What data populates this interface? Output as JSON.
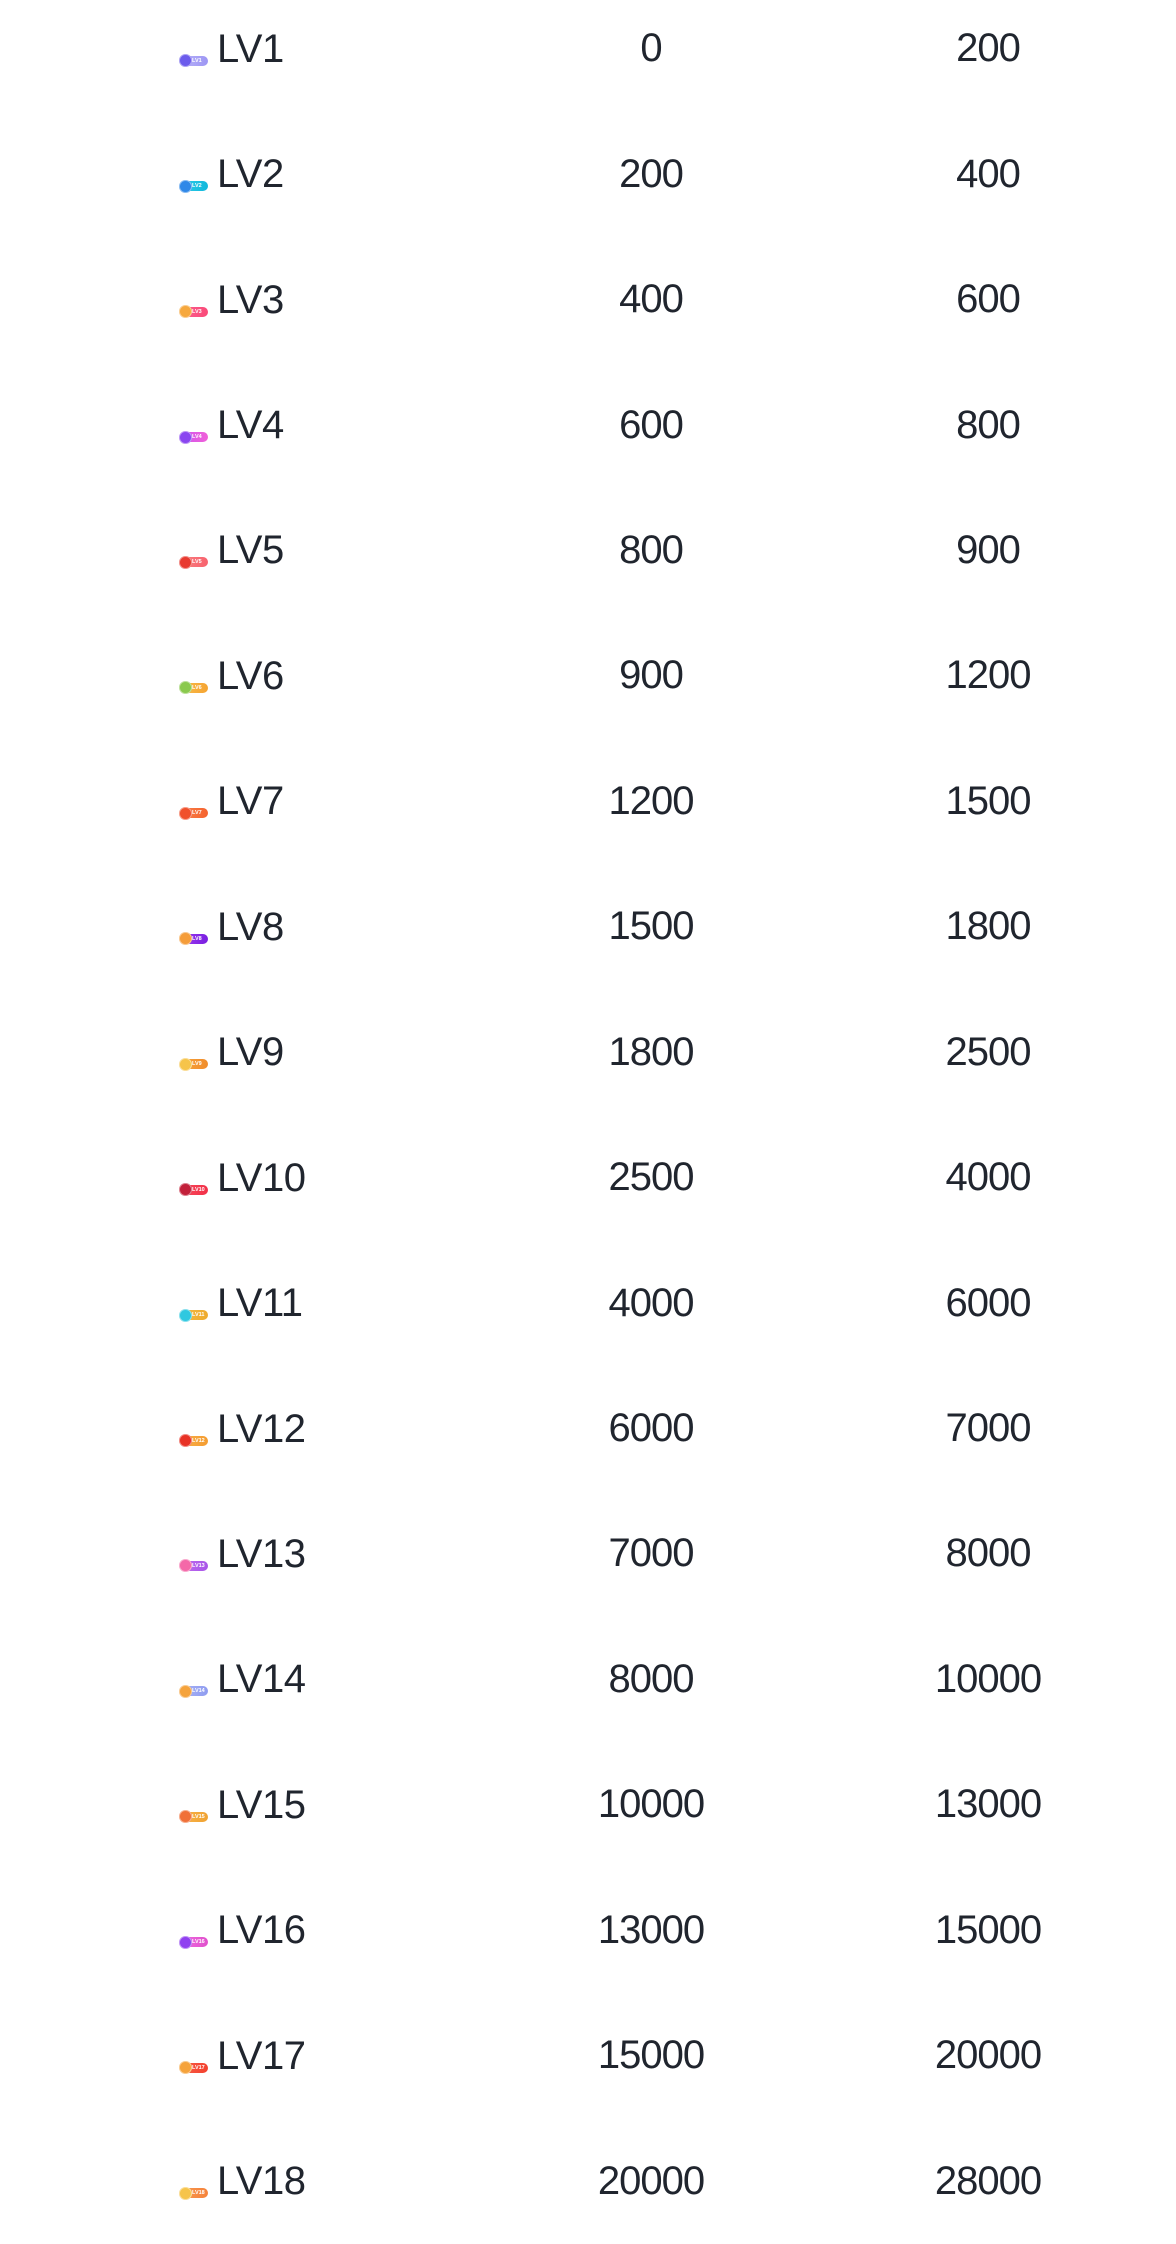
{
  "page": {
    "background_color": "#ffffff",
    "text_color": "#20252e"
  },
  "rows": [
    {
      "level": "LV1",
      "min": "0",
      "max": "200",
      "badge": {
        "dot": "#6c5cec",
        "from": "#b9b4f8",
        "to": "#9d96f4"
      }
    },
    {
      "level": "LV2",
      "min": "200",
      "max": "400",
      "badge": {
        "dot": "#2f88e8",
        "from": "#2ecde8",
        "to": "#12b8dc"
      }
    },
    {
      "level": "LV3",
      "min": "400",
      "max": "600",
      "badge": {
        "dot": "#f6a83e",
        "from": "#fb5f90",
        "to": "#fa4a78"
      }
    },
    {
      "level": "LV4",
      "min": "600",
      "max": "800",
      "badge": {
        "dot": "#8a46f0",
        "from": "#cf55f0",
        "to": "#f060d8"
      }
    },
    {
      "level": "LV5",
      "min": "800",
      "max": "900",
      "badge": {
        "dot": "#e83a30",
        "from": "#fa8080",
        "to": "#f7626e"
      }
    },
    {
      "level": "LV6",
      "min": "900",
      "max": "1200",
      "badge": {
        "dot": "#8ac94e",
        "from": "#f8bb4a",
        "to": "#f5a432"
      }
    },
    {
      "level": "LV7",
      "min": "1200",
      "max": "1500",
      "badge": {
        "dot": "#f0512c",
        "from": "#f8824a",
        "to": "#f5622e"
      }
    },
    {
      "level": "LV8",
      "min": "1500",
      "max": "1800",
      "badge": {
        "dot": "#f59d3a",
        "from": "#9b3af0",
        "to": "#7a1fe0"
      }
    },
    {
      "level": "LV9",
      "min": "1800",
      "max": "2500",
      "badge": {
        "dot": "#f6c44a",
        "from": "#f8a53e",
        "to": "#f08c2a"
      }
    },
    {
      "level": "LV10",
      "min": "2500",
      "max": "4000",
      "badge": {
        "dot": "#c2203a",
        "from": "#f84a5c",
        "to": "#f23048"
      }
    },
    {
      "level": "LV11",
      "min": "4000",
      "max": "6000",
      "badge": {
        "dot": "#30c8e0",
        "from": "#f4bc42",
        "to": "#eeaa2e"
      }
    },
    {
      "level": "LV12",
      "min": "6000",
      "max": "7000",
      "badge": {
        "dot": "#e83226",
        "from": "#f8b04a",
        "to": "#f49c30"
      }
    },
    {
      "level": "LV13",
      "min": "7000",
      "max": "8000",
      "badge": {
        "dot": "#f468a8",
        "from": "#c06cf0",
        "to": "#a855e8"
      }
    },
    {
      "level": "LV14",
      "min": "8000",
      "max": "10000",
      "badge": {
        "dot": "#f5a33c",
        "from": "#a9b4f6",
        "to": "#8f9cf0"
      }
    },
    {
      "level": "LV15",
      "min": "10000",
      "max": "13000",
      "badge": {
        "dot": "#f07038",
        "from": "#f8b44a",
        "to": "#f0a232"
      }
    },
    {
      "level": "LV16",
      "min": "13000",
      "max": "15000",
      "badge": {
        "dot": "#9040f0",
        "from": "#f06ae0",
        "to": "#e050cc"
      }
    },
    {
      "level": "LV17",
      "min": "15000",
      "max": "20000",
      "badge": {
        "dot": "#f5a33c",
        "from": "#f66048",
        "to": "#f4402e"
      }
    },
    {
      "level": "LV18",
      "min": "20000",
      "max": "28000",
      "badge": {
        "dot": "#f6c44a",
        "from": "#f89a52",
        "to": "#f5823a"
      }
    }
  ]
}
